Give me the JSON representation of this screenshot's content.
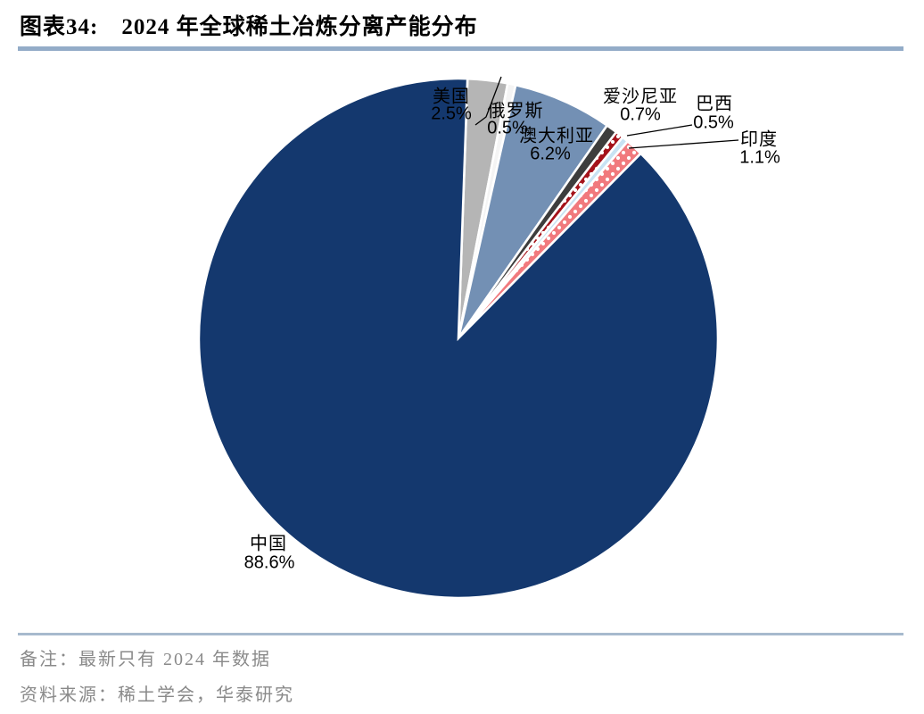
{
  "figure": {
    "label": "图表34:",
    "title": "2024 年全球稀土冶炼分离产能分布",
    "note_line": "备注：最新只有 2024 年数据",
    "source_line": "资料来源：稀土学会，华泰研究",
    "accent_color": "#93acc8"
  },
  "chart_data": {
    "type": "pie",
    "title": "2024 年全球稀土冶炼分离产能分布",
    "unit": "%",
    "direction": "clockwise",
    "start_angle_deg": 2,
    "legend": "none (direct labels with leader lines)",
    "slices": [
      {
        "name": "美国",
        "value": 2.5,
        "pct_label": "2.5%",
        "color": "#b5b5b5",
        "pattern": "solid"
      },
      {
        "name": "俄罗斯",
        "value": 0.5,
        "pct_label": "0.5%",
        "color": "#f4f4f4",
        "pattern": "solid"
      },
      {
        "name": "澳大利亚",
        "value": 6.2,
        "pct_label": "6.2%",
        "color": "#7390b4",
        "pattern": "solid"
      },
      {
        "name": "爱沙尼亚",
        "value": 0.7,
        "pct_label": "0.7%",
        "color": "#3d3d3d",
        "pattern": "solid"
      },
      {
        "name": "巴西",
        "value": 0.5,
        "pct_label": "0.5%",
        "color": "#a4121a",
        "pattern": "white-dots"
      },
      {
        "name": "",
        "value": 0.4,
        "pct_label": "",
        "color": "#c8e3f3",
        "pattern": "solid",
        "unlabeled_sliver": true
      },
      {
        "name": "印度",
        "value": 1.1,
        "pct_label": "1.1%",
        "color": "#f1797d",
        "pattern": "white-dots"
      },
      {
        "name": "中国",
        "value": 88.6,
        "pct_label": "88.6%",
        "color": "#14386e",
        "pattern": "solid"
      }
    ]
  }
}
